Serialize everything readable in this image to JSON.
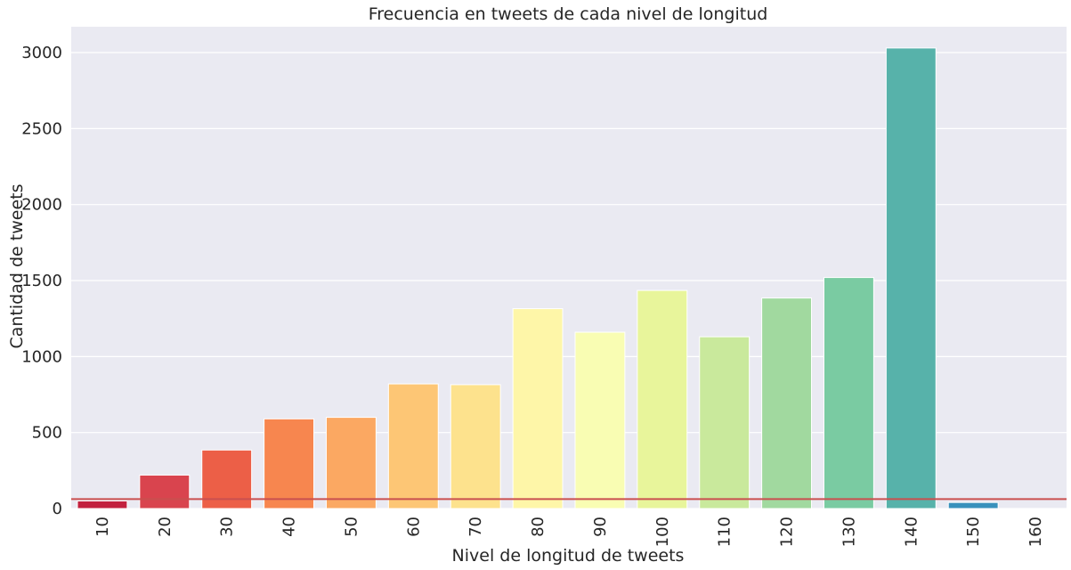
{
  "chart_data": {
    "type": "bar",
    "title": "Frecuencia en tweets de cada nivel de longitud",
    "xlabel": "Nivel de longitud de tweets",
    "ylabel": "Cantidad de tweets",
    "categories": [
      "10",
      "20",
      "30",
      "40",
      "50",
      "60",
      "70",
      "80",
      "90",
      "100",
      "110",
      "120",
      "130",
      "140",
      "150",
      "160"
    ],
    "values": [
      50,
      220,
      385,
      590,
      600,
      820,
      815,
      1315,
      1160,
      1435,
      1130,
      1385,
      1520,
      3030,
      40,
      0
    ],
    "colors": [
      "#c2213e",
      "#d9444e",
      "#ec5f47",
      "#f7864f",
      "#fba862",
      "#fdc675",
      "#fde28d",
      "#fef6a8",
      "#f9fdb3",
      "#e8f59b",
      "#c9e99c",
      "#a1d99f",
      "#7acba2",
      "#57b2aa",
      "#3891bc",
      "#5e4fa2"
    ],
    "ylim": [
      0,
      3170
    ],
    "yticks": [
      0,
      500,
      1000,
      1500,
      2000,
      2500,
      3000
    ],
    "reference_line": 62,
    "reference_line_color": "#c94f4f",
    "background": "#eaeaf2",
    "grid": true,
    "grid_axis": "y",
    "grid_color": "#ffffff"
  }
}
